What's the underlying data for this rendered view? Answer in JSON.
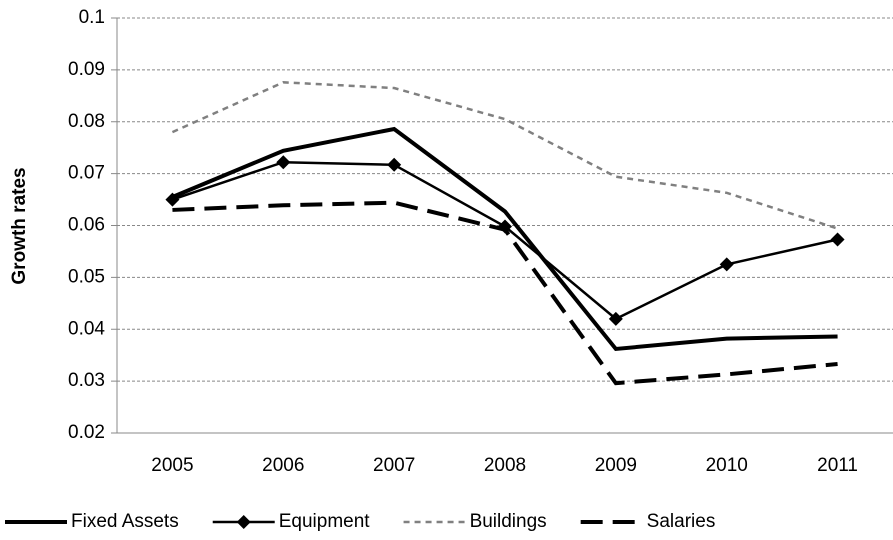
{
  "chart_data": {
    "type": "line",
    "y_label": "Growth rates",
    "categories": [
      "2005",
      "2006",
      "2007",
      "2008",
      "2009",
      "2010",
      "2011"
    ],
    "series": [
      {
        "name": "Fixed Assets",
        "color": "#000000",
        "width": 4,
        "dash": "solid",
        "marker": "none",
        "values": [
          0.0655,
          0.0744,
          0.0786,
          0.0627,
          0.0362,
          0.0382,
          0.0386
        ]
      },
      {
        "name": "Equipment",
        "color": "#000000",
        "width": 2.5,
        "dash": "solid",
        "marker": "diamond",
        "values": [
          0.065,
          0.0722,
          0.0717,
          0.0598,
          0.042,
          0.0525,
          0.0573
        ]
      },
      {
        "name": "Buildings",
        "color": "#808080",
        "width": 2.5,
        "dash": "short",
        "marker": "none",
        "values": [
          0.078,
          0.0876,
          0.0865,
          0.0805,
          0.0694,
          0.0663,
          0.0594
        ]
      },
      {
        "name": "Salaries",
        "color": "#000000",
        "width": 4,
        "dash": "long",
        "marker": "none",
        "values": [
          0.063,
          0.0639,
          0.0644,
          0.0592,
          0.0296,
          0.0313,
          0.0333
        ]
      }
    ],
    "ylim": [
      0.02,
      0.1
    ],
    "yticks": [
      0.02,
      0.03,
      0.04,
      0.05,
      0.06,
      0.07,
      0.08,
      0.09,
      0.1
    ],
    "grid": true,
    "legend": "bottom"
  }
}
